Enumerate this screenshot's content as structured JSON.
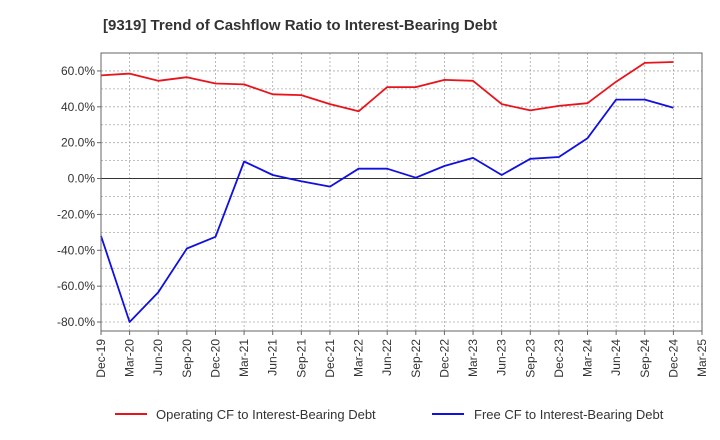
{
  "chart_data": {
    "type": "line",
    "title": "[9319]  Trend of Cashflow Ratio to Interest-Bearing Debt",
    "xlabel": "",
    "ylabel": "",
    "ylim": [
      -85,
      70
    ],
    "y_ticks": [
      60,
      40,
      20,
      0,
      -20,
      -40,
      -60,
      -80
    ],
    "y_tick_labels": [
      "60.0%",
      "40.0%",
      "20.0%",
      "0.0%",
      "-20.0%",
      "-40.0%",
      "-60.0%",
      "-80.0%"
    ],
    "categories": [
      "Dec-19",
      "Mar-20",
      "Jun-20",
      "Sep-20",
      "Dec-20",
      "Mar-21",
      "Jun-21",
      "Sep-21",
      "Dec-21",
      "Mar-22",
      "Jun-22",
      "Sep-22",
      "Dec-22",
      "Mar-23",
      "Jun-23",
      "Sep-23",
      "Dec-23",
      "Mar-24",
      "Jun-24",
      "Sep-24",
      "Dec-24",
      "Mar-25"
    ],
    "grid": true,
    "legend_position": "bottom",
    "series": [
      {
        "name": "Operating CF to Interest-Bearing Debt",
        "color": "#e8141b",
        "values": [
          57.5,
          58.5,
          54.5,
          56.5,
          53,
          52.5,
          47,
          46.5,
          41.5,
          37.5,
          51,
          51,
          55,
          54.5,
          41.5,
          38,
          40.5,
          42,
          54,
          64.5,
          65,
          null
        ]
      },
      {
        "name": "Free CF to Interest-Bearing Debt",
        "color": "#1010e0",
        "values": [
          -32,
          -80,
          -63.5,
          -39,
          -32.5,
          9.5,
          2,
          -1.5,
          -4.5,
          5.5,
          5.5,
          0.5,
          7,
          11.5,
          2,
          11,
          12,
          22.5,
          44,
          44,
          39.5,
          null
        ]
      }
    ]
  }
}
